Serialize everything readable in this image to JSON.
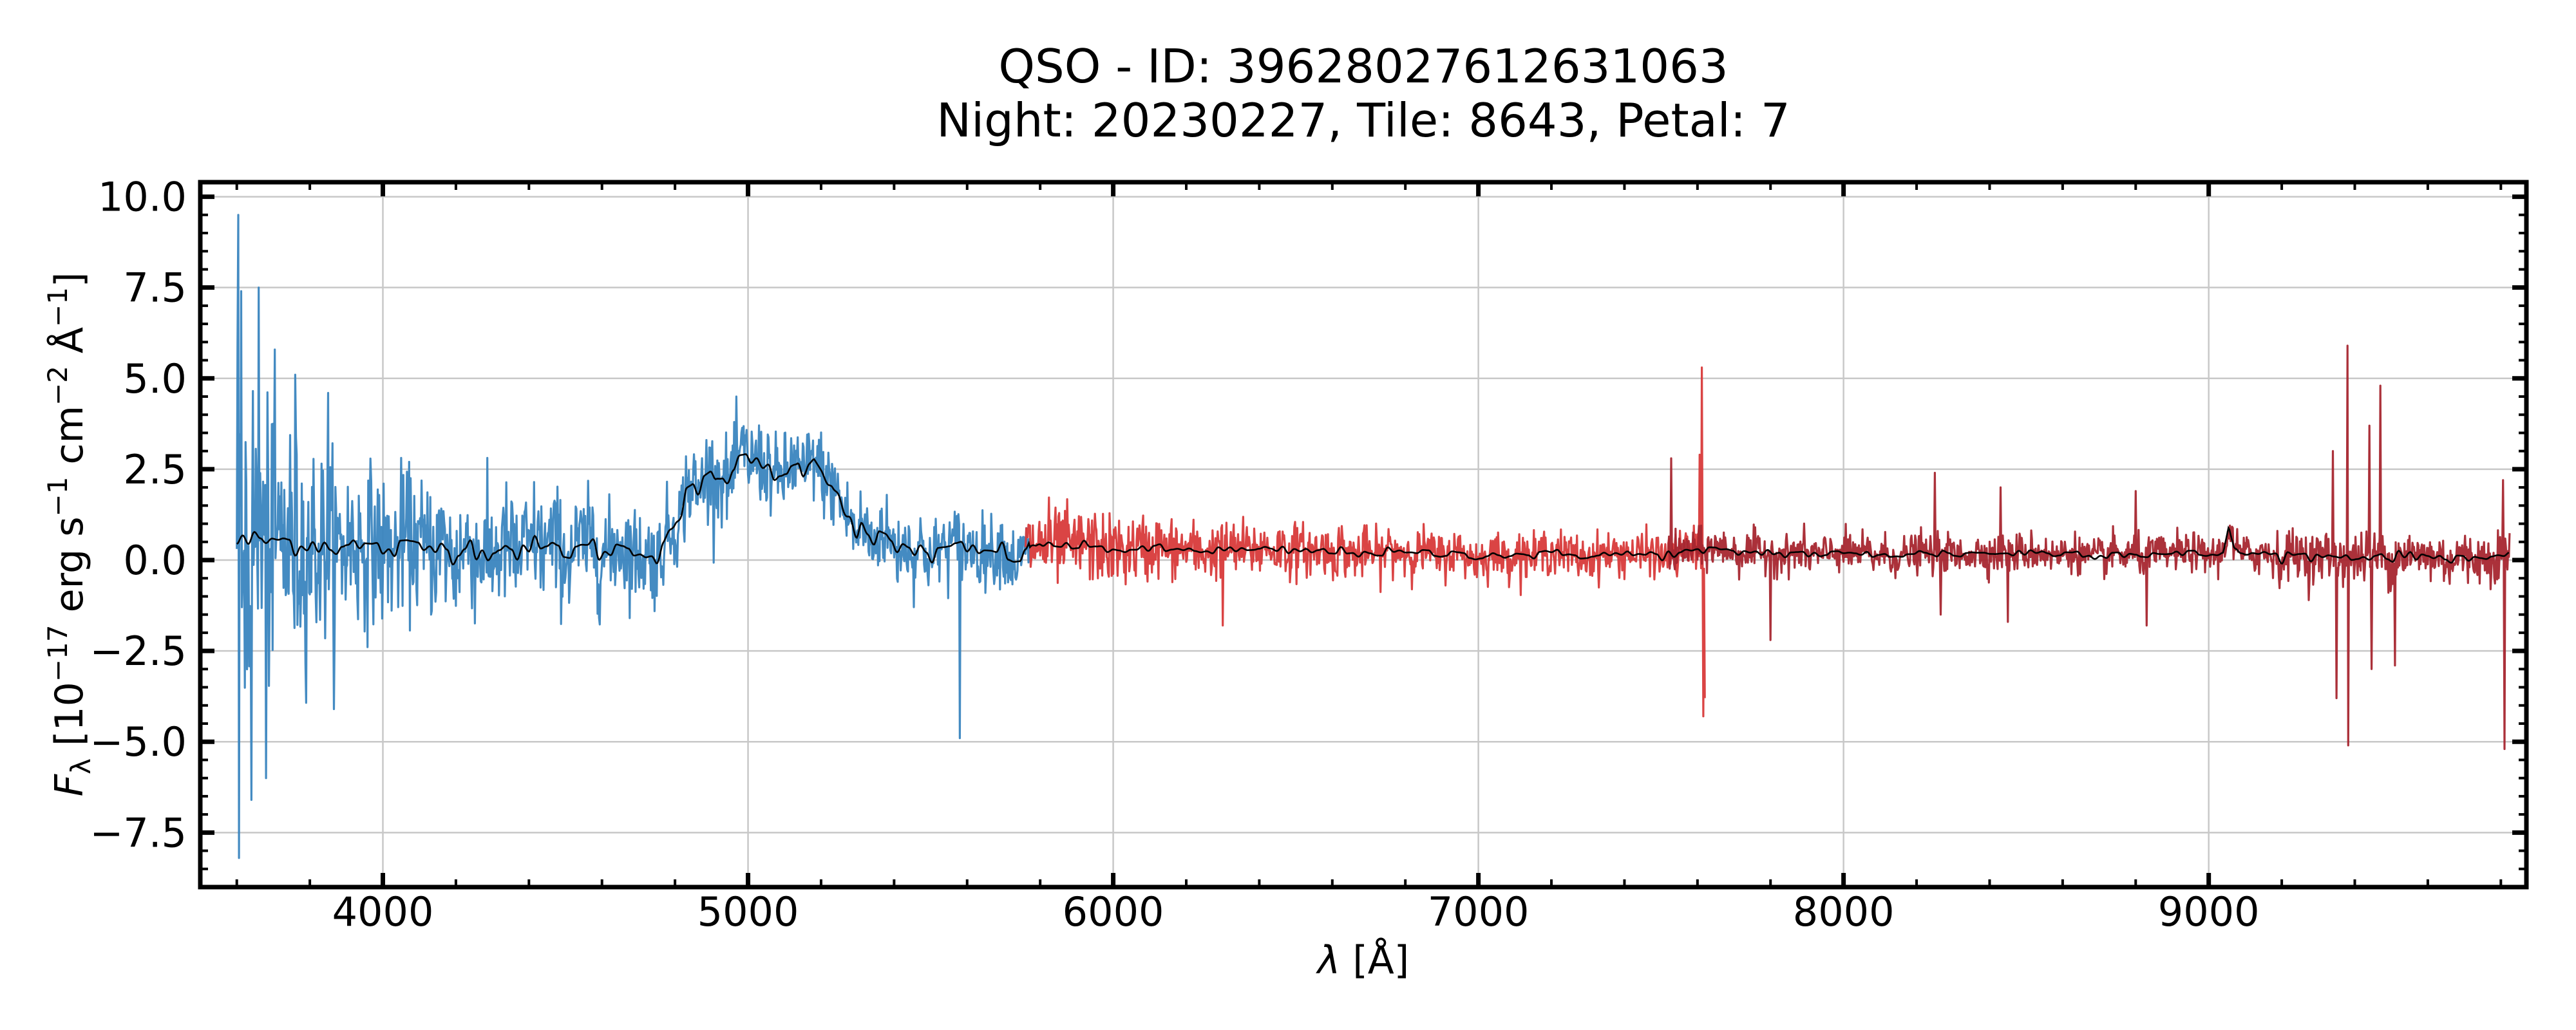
{
  "chart_data": {
    "type": "line",
    "title": [
      "QSO - ID: 39628027612631063",
      "Night: 20230227, Tile: 8643, Petal: 7"
    ],
    "xlabel": {
      "symbol": "λ",
      "unit": " [Å]"
    },
    "ylabel": {
      "symbol": "F",
      "sub": "λ",
      "text1": " [10",
      "sup1": "−17",
      "text2": " erg s",
      "sup2": "−1",
      "text3": " cm",
      "sup3": "−2",
      "text4": " Å",
      "sup4": "−1",
      "text5": "]"
    },
    "xlim": [
      3500,
      9870
    ],
    "ylim": [
      -9.0,
      10.4
    ],
    "xticks": [
      4000,
      5000,
      6000,
      7000,
      8000,
      9000
    ],
    "xtick_labels": [
      "4000",
      "5000",
      "6000",
      "7000",
      "8000",
      "9000"
    ],
    "x_minor_step": 200,
    "yticks": [
      -7.5,
      -5.0,
      -2.5,
      0.0,
      2.5,
      5.0,
      7.5,
      10.0
    ],
    "ytick_labels": [
      "−7.5",
      "−5.0",
      "−2.5",
      "0.0",
      "2.5",
      "5.0",
      "7.5",
      "10.0"
    ],
    "y_minor_step": 0.5,
    "grid": true,
    "ticks_direction": "in, all four sides",
    "series": [
      {
        "arm": "blue",
        "color": "#3a85bf",
        "x_range": [
          3600,
          5770
        ],
        "noise_sigma": [
          [
            3600,
            2.4
          ],
          [
            3800,
            1.4
          ],
          [
            4000,
            1.0
          ],
          [
            4500,
            0.75
          ],
          [
            4800,
            0.6
          ],
          [
            5200,
            0.55
          ],
          [
            5770,
            0.45
          ]
        ],
        "spikes": [
          [
            3603,
            9.5
          ],
          [
            3605,
            -8.2
          ],
          [
            3612,
            7.4
          ],
          [
            3660,
            7.5
          ],
          [
            3640,
            -6.6
          ],
          [
            3680,
            -6.0
          ],
          [
            3760,
            5.1
          ],
          [
            3850,
            4.6
          ],
          [
            5580,
            -4.9
          ]
        ]
      },
      {
        "arm": "red",
        "color": "#d83a3a",
        "x_range": [
          5760,
          7620
        ],
        "noise_sigma": [
          [
            5760,
            0.55
          ],
          [
            6200,
            0.4
          ],
          [
            7000,
            0.3
          ],
          [
            7620,
            0.3
          ]
        ],
        "spikes": [
          [
            6300,
            -1.8
          ],
          [
            7612,
            5.3
          ],
          [
            7615,
            -4.3
          ],
          [
            7605,
            2.9
          ],
          [
            7620,
            -3.8
          ]
        ]
      },
      {
        "arm": "nir",
        "color": "#a6262f",
        "x_range": [
          7520,
          9824
        ],
        "noise_sigma": [
          [
            7520,
            0.28
          ],
          [
            9000,
            0.25
          ],
          [
            9300,
            0.35
          ],
          [
            9824,
            0.35
          ]
        ],
        "spikes": [
          [
            7527,
            2.8
          ],
          [
            7800,
            -2.2
          ],
          [
            8250,
            2.4
          ],
          [
            8265,
            -1.5
          ],
          [
            8430,
            2.0
          ],
          [
            8450,
            -1.7
          ],
          [
            8800,
            1.9
          ],
          [
            8830,
            -1.8
          ],
          [
            9340,
            3.0
          ],
          [
            9350,
            -3.8
          ],
          [
            9380,
            5.9
          ],
          [
            9382,
            -5.1
          ],
          [
            9440,
            3.7
          ],
          [
            9445,
            -3.0
          ],
          [
            9470,
            4.8
          ],
          [
            9510,
            -2.9
          ],
          [
            9805,
            2.2
          ],
          [
            9810,
            -5.2
          ]
        ]
      }
    ],
    "smoothed_model": {
      "color": "#000000",
      "points": [
        [
          3600,
          0.5
        ],
        [
          3700,
          0.55
        ],
        [
          3800,
          0.45
        ],
        [
          3900,
          0.4
        ],
        [
          4000,
          0.3
        ],
        [
          4200,
          0.35
        ],
        [
          4400,
          0.3
        ],
        [
          4600,
          0.3
        ],
        [
          4750,
          0.25
        ],
        [
          4790,
          0.8
        ],
        [
          4830,
          1.7
        ],
        [
          4900,
          2.2
        ],
        [
          4960,
          2.5
        ],
        [
          5000,
          2.7
        ],
        [
          5060,
          2.5
        ],
        [
          5120,
          2.4
        ],
        [
          5180,
          2.9
        ],
        [
          5230,
          2.1
        ],
        [
          5270,
          1.3
        ],
        [
          5320,
          0.7
        ],
        [
          5400,
          0.35
        ],
        [
          5500,
          0.2
        ],
        [
          5600,
          0.25
        ],
        [
          5760,
          0.15
        ],
        [
          5800,
          0.45
        ],
        [
          6000,
          0.3
        ],
        [
          6500,
          0.25
        ],
        [
          7000,
          0.15
        ],
        [
          7500,
          0.15
        ],
        [
          7620,
          0.25
        ],
        [
          8000,
          0.15
        ],
        [
          8500,
          0.2
        ],
        [
          9000,
          0.15
        ],
        [
          9040,
          0.2
        ],
        [
          9055,
          1.0
        ],
        [
          9070,
          0.2
        ],
        [
          9300,
          0.1
        ],
        [
          9600,
          0.1
        ],
        [
          9824,
          0.05
        ]
      ]
    }
  }
}
